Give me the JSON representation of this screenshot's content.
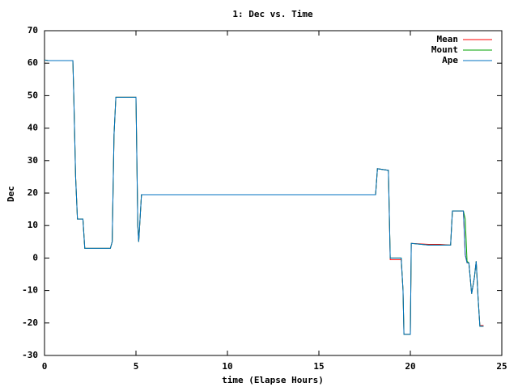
{
  "chart_data": {
    "type": "line",
    "title": "1: Dec vs. Time",
    "x_label": "time (Elapse Hours)",
    "y_label": "Dec",
    "x": [
      0,
      0.2,
      1.55,
      1.6,
      1.7,
      1.8,
      2.1,
      2.2,
      3.6,
      3.7,
      3.8,
      3.9,
      5.0,
      5.1,
      5.15,
      5.3,
      18.1,
      18.2,
      18.8,
      18.9,
      19.5,
      19.6,
      19.65,
      20.0,
      20.05,
      21.0,
      21.6,
      22.2,
      22.3,
      22.9,
      23.0,
      23.1,
      23.2,
      23.35,
      23.5,
      23.6,
      23.7,
      23.8,
      24.0
    ],
    "series": [
      {
        "name": "Mean",
        "color": "#ff0000",
        "values": [
          61,
          60.8,
          60.8,
          50,
          25,
          12,
          12,
          3,
          3,
          5,
          38,
          49.5,
          49.5,
          10,
          5,
          19.5,
          19.5,
          27.5,
          27,
          -0.5,
          -0.5,
          -10,
          -23.5,
          -23.5,
          4.5,
          4.2,
          4.2,
          4,
          14.5,
          14.5,
          1,
          -1.5,
          -1.5,
          -11,
          -6,
          -1,
          -12,
          -20.8,
          -20.8
        ]
      },
      {
        "name": "Mount",
        "color": "#00a000",
        "values": [
          61,
          60.8,
          60.8,
          50,
          25,
          12,
          12,
          3,
          3,
          5,
          38,
          49.5,
          49.5,
          10,
          5,
          19.5,
          19.5,
          27.5,
          27,
          0,
          0,
          -10,
          -23.5,
          -23.5,
          4.5,
          4,
          4,
          4,
          14.5,
          14.5,
          12,
          -1,
          -1.5,
          -11,
          -6,
          -1,
          -12,
          -21,
          -21
        ]
      },
      {
        "name": "Ape",
        "color": "#0070c0",
        "values": [
          61,
          60.8,
          60.8,
          50,
          25,
          12,
          12,
          3,
          3,
          5,
          38,
          49.5,
          49.5,
          10,
          5,
          19.5,
          19.5,
          27.5,
          27,
          0,
          0,
          -10,
          -23.5,
          -23.5,
          4.5,
          4,
          4,
          4,
          14.5,
          14.5,
          1,
          -1.5,
          -1.5,
          -11,
          -6,
          -1,
          -12,
          -21,
          -21
        ]
      }
    ],
    "xlim": [
      0,
      25
    ],
    "xticks": [
      0,
      5,
      10,
      15,
      20,
      25
    ],
    "ylim": [
      -30,
      70
    ],
    "yticks": [
      -30,
      -20,
      -10,
      0,
      10,
      20,
      30,
      40,
      50,
      60,
      70
    ],
    "legend": "top-right"
  }
}
